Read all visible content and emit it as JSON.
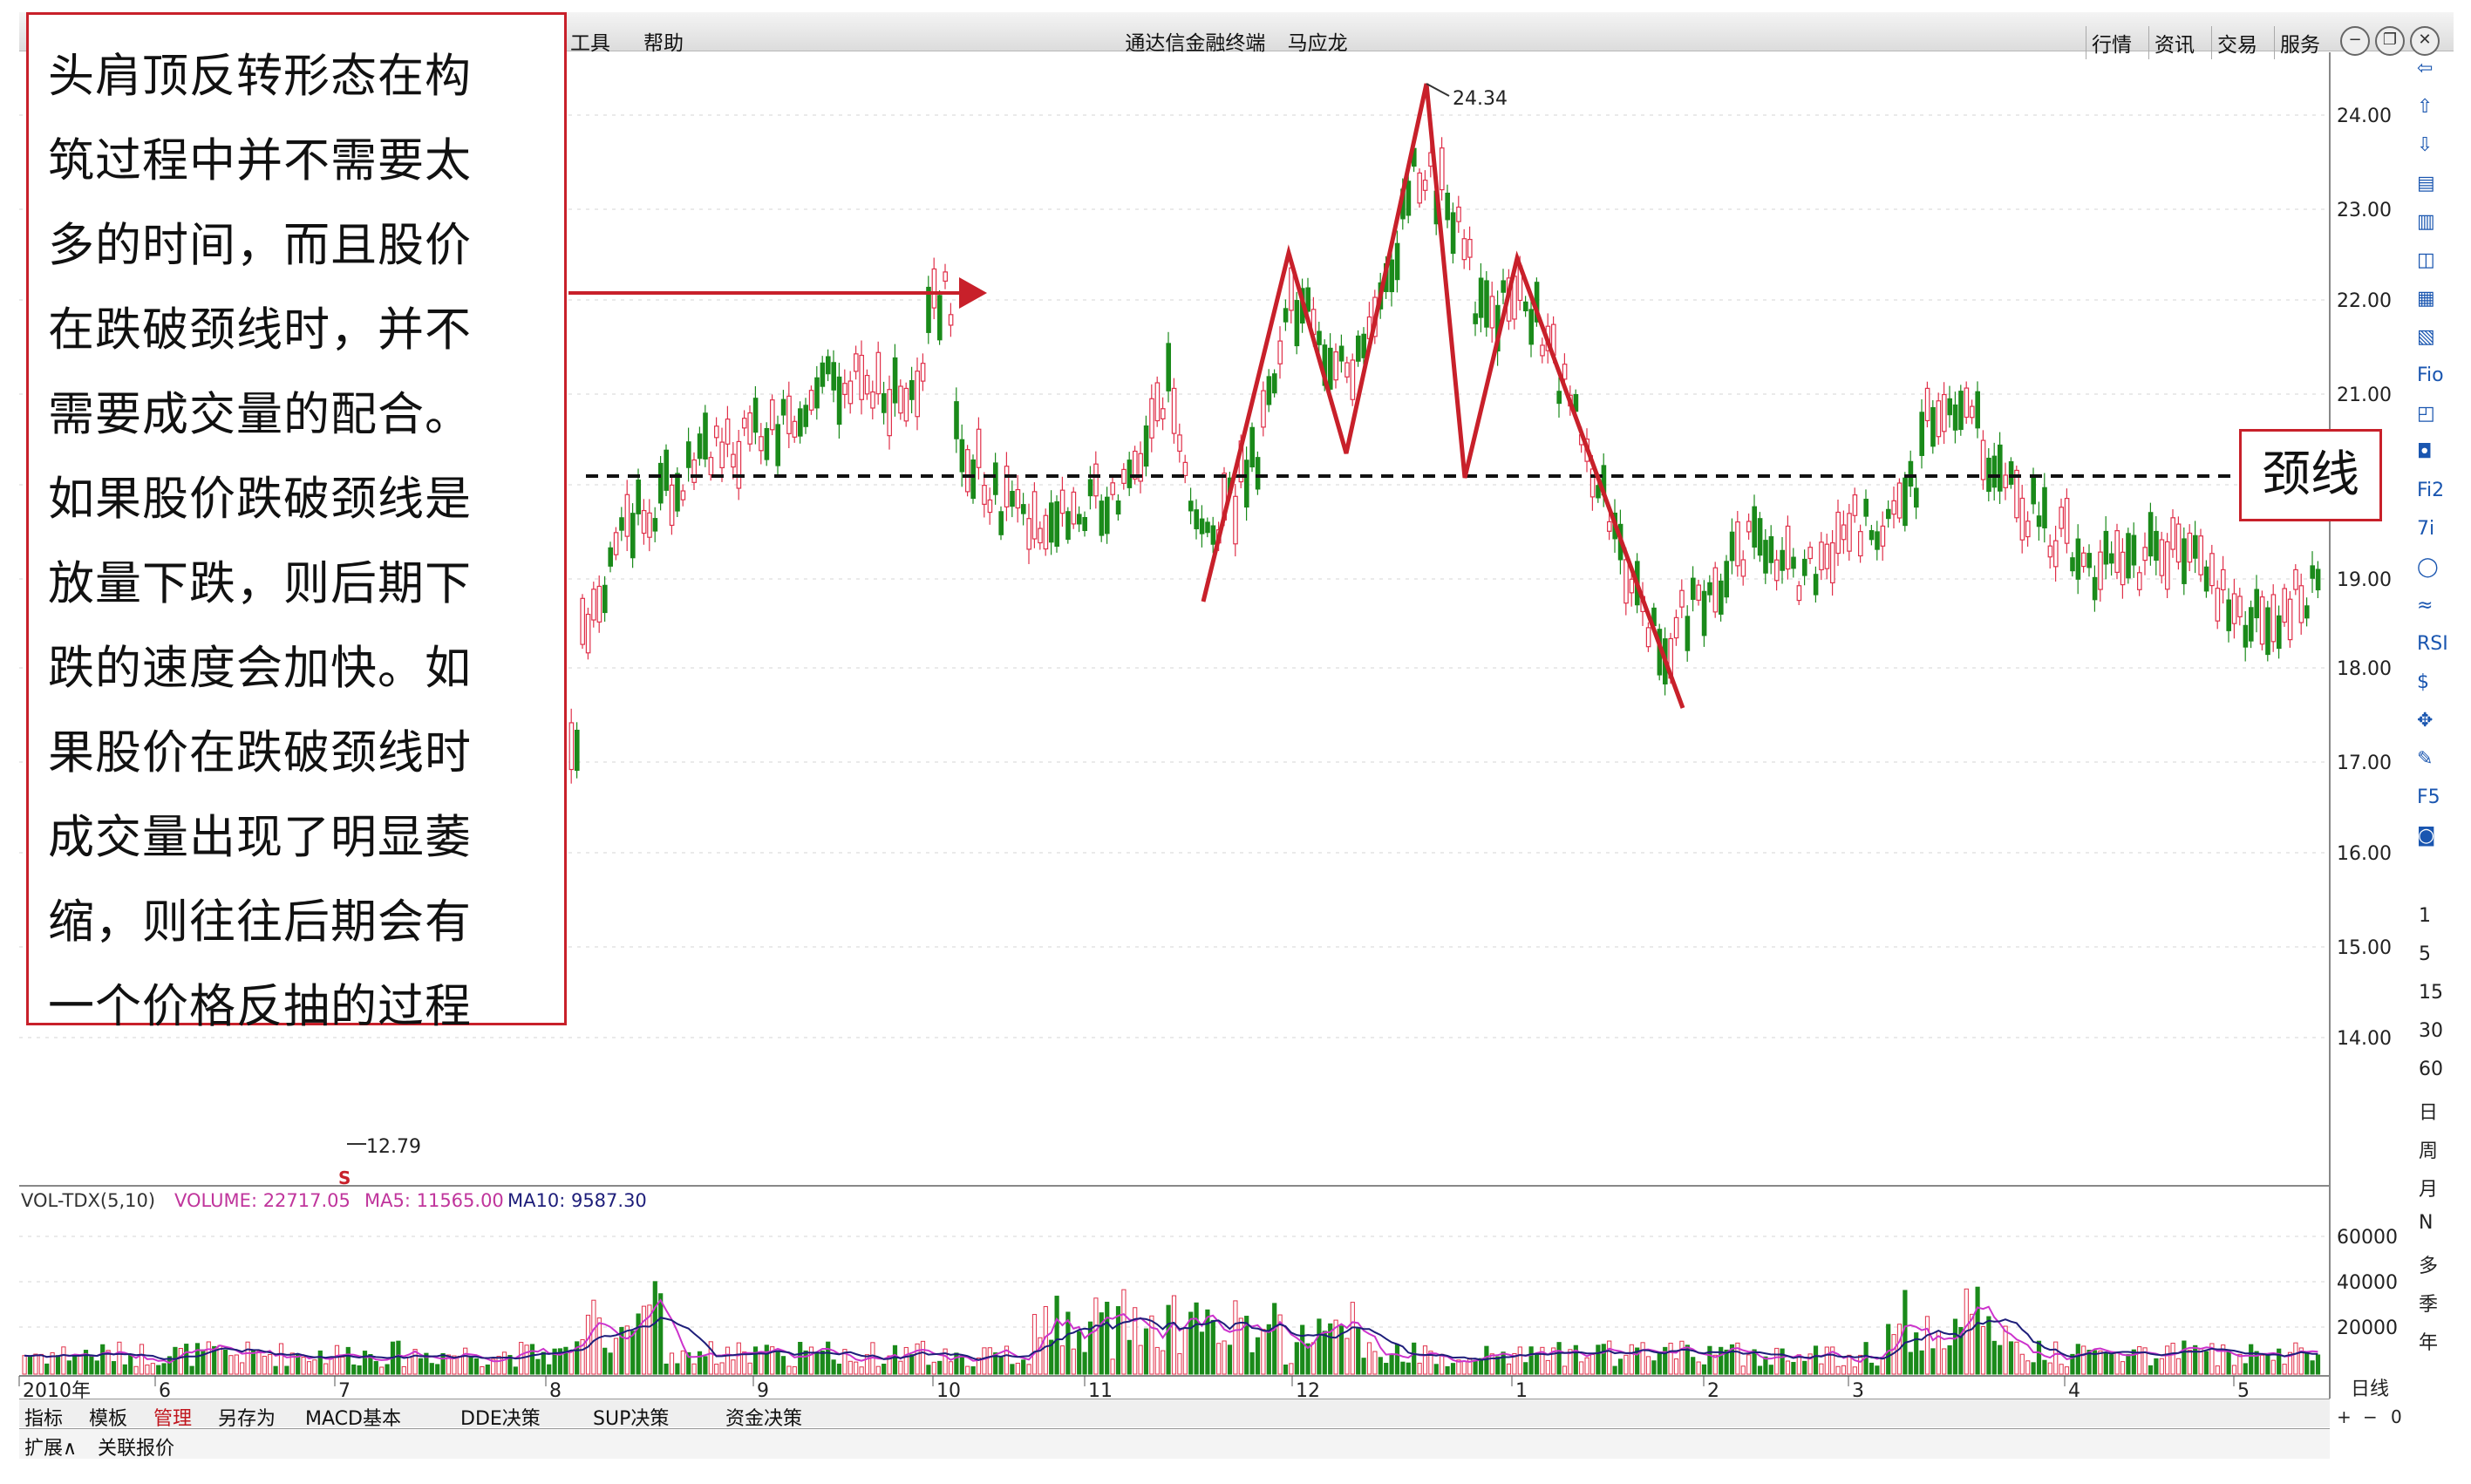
{
  "window": {
    "title": "通达信金融终端",
    "user": "马应龙",
    "menus": [
      "工具",
      "帮助"
    ],
    "toolbar": [
      "行情",
      "资讯",
      "交易",
      "服务"
    ],
    "window_buttons": [
      "−",
      "❐",
      "✕"
    ]
  },
  "annotation": {
    "lines": [
      "头肩顶反转形态在构",
      "筑过程中并不需要太",
      "多的时间，而且股价",
      "在跌破颈线时，并不",
      "需要成交量的配合。",
      "如果股价跌破颈线是",
      "放量下跌，则后期下",
      "跌的速度会加快。如",
      "果股价在跌破颈线时",
      "成交量出现了明显萎",
      "缩，则往往后期会有",
      "一个价格反抽的过程"
    ],
    "neckline_label": "颈线"
  },
  "chart": {
    "high_label": "24.34",
    "low_label": "12.79",
    "price_ticks": [
      "24.00",
      "23.00",
      "22.00",
      "21.00",
      "00",
      "19.00",
      "18.00",
      "17.00",
      "16.00",
      "15.00",
      "14.00"
    ],
    "vol_ticks": [
      "60000",
      "40000",
      "20000"
    ],
    "vol_legend": {
      "name": "VOL-TDX(5,10)",
      "volume": "VOLUME: 22717.05",
      "ma5": "MA5: 11565.00",
      "ma10": "MA10: 9587.30"
    },
    "x_labels": [
      "2010年",
      "6",
      "7",
      "8",
      "9",
      "10",
      "11",
      "12",
      "1",
      "2",
      "3",
      "4",
      "5"
    ],
    "period_label": "日线",
    "zoom_controls": [
      "+",
      "−",
      "0"
    ],
    "signal_marker": "S"
  },
  "sidebar": {
    "icons": [
      "⇦",
      "⇧",
      "⇩",
      "▤",
      "▥",
      "◫",
      "▦",
      "▧",
      "Fio",
      "◰",
      "◘",
      "Fi2",
      "7i",
      "◯",
      "≈",
      "RSI",
      "$",
      "✥",
      "✎",
      "F5",
      "◙"
    ],
    "periods": [
      "1",
      "5",
      "15",
      "30",
      "60",
      "日",
      "周",
      "月",
      "N",
      "多",
      "季",
      "年"
    ]
  },
  "tabs": [
    "指标",
    "模板",
    "管理",
    "另存为",
    "MACD基本",
    "DDE决策",
    "SUP决策",
    "资金决策"
  ],
  "active_tab": "管理",
  "bottom": [
    "扩展∧",
    "关联报价"
  ],
  "colors": {
    "up": "#e0304a",
    "down": "#1a8a1a",
    "accent": "#c8202a",
    "ma5": "#cc33cc",
    "ma10": "#1e1e7a"
  }
}
